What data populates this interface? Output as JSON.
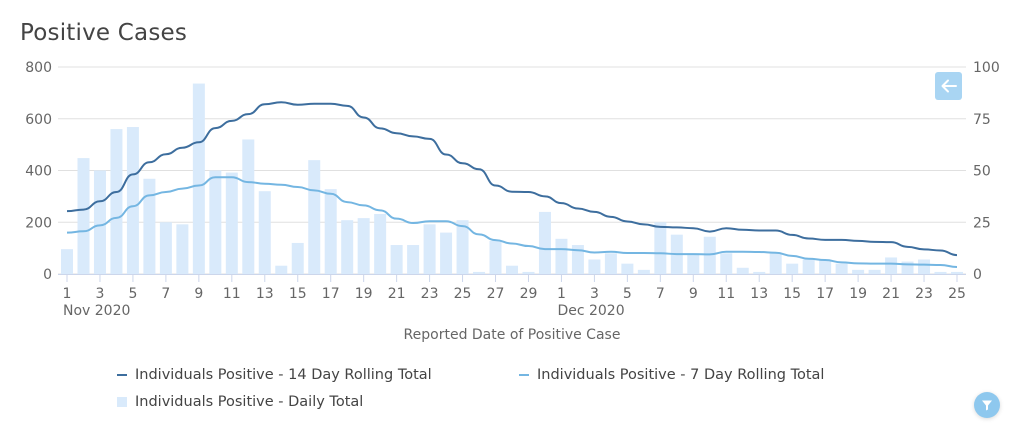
{
  "title": "Positive Cases",
  "controls": {
    "back_icon": "arrow-left-icon",
    "filter_icon": "filter-funnel-icon"
  },
  "colors": {
    "line_14day": "#3d6e9e",
    "line_7day": "#74b6e2",
    "bars": "#d9eafb",
    "grid": "#e0e0e0",
    "button": "#a9d5f3"
  },
  "chart_data": {
    "type": "bar+line",
    "title": "Positive Cases",
    "xlabel": "Reported Date of Positive Case",
    "ylabel_left": "",
    "ylabel_right": "",
    "left_axis": {
      "range": [
        0,
        800
      ],
      "ticks": [
        "0",
        "200",
        "400",
        "600",
        "800"
      ],
      "series": [
        "Individuals Positive - 14 Day Rolling Total",
        "Individuals Positive - 7 Day Rolling Total"
      ]
    },
    "right_axis": {
      "range": [
        0,
        100
      ],
      "ticks": [
        "0",
        "25",
        "50",
        "75",
        "100"
      ],
      "series": [
        "Individuals Positive - Daily Total"
      ]
    },
    "grid": true,
    "legend_position": "bottom",
    "x_tick_labels": [
      "1",
      "3",
      "5",
      "7",
      "9",
      "11",
      "13",
      "15",
      "17",
      "19",
      "21",
      "23",
      "25",
      "27",
      "29",
      "1",
      "3",
      "5",
      "7",
      "9",
      "11",
      "13",
      "15",
      "17",
      "19",
      "21",
      "23",
      "25"
    ],
    "x_tick_day_index": [
      1,
      3,
      5,
      7,
      9,
      11,
      13,
      15,
      17,
      19,
      21,
      23,
      25,
      27,
      29,
      31,
      33,
      35,
      37,
      39,
      41,
      43,
      45,
      47,
      49,
      51,
      53,
      55
    ],
    "month_labels": [
      {
        "label": "Nov 2020",
        "day_index": 1
      },
      {
        "label": "Dec 2020",
        "day_index": 31
      }
    ],
    "x_start": "2020-11-01",
    "x_end": "2020-12-25",
    "series": [
      {
        "name": "Individuals Positive - 14 Day Rolling Total",
        "type": "line",
        "axis": "left",
        "values": [
          243,
          249,
          281,
          317,
          385,
          432,
          463,
          488,
          509,
          564,
          592,
          618,
          656,
          664,
          654,
          658,
          658,
          650,
          605,
          563,
          544,
          532,
          522,
          462,
          428,
          405,
          342,
          318,
          317,
          300,
          274,
          253,
          240,
          221,
          203,
          192,
          182,
          180,
          177,
          164,
          177,
          171,
          168,
          168,
          151,
          137,
          132,
          132,
          128,
          124,
          123,
          105,
          95,
          91,
          73
        ]
      },
      {
        "name": "Individuals Positive - 7 Day Rolling Total",
        "type": "line",
        "axis": "left",
        "values": [
          160,
          165,
          188,
          217,
          262,
          304,
          317,
          330,
          342,
          374,
          374,
          355,
          349,
          345,
          336,
          323,
          310,
          278,
          265,
          246,
          214,
          197,
          204,
          204,
          185,
          153,
          131,
          118,
          108,
          96,
          96,
          92,
          83,
          86,
          81,
          81,
          80,
          77,
          77,
          76,
          86,
          86,
          85,
          82,
          70,
          59,
          54,
          45,
          41,
          40,
          40,
          37,
          36,
          35,
          27
        ]
      },
      {
        "name": "Individuals Positive - Daily Total",
        "type": "bar",
        "axis": "right",
        "values": [
          12,
          56,
          50,
          70,
          71,
          46,
          25,
          24,
          92,
          50,
          49,
          65,
          40,
          4,
          15,
          55,
          41,
          26,
          27,
          29,
          14,
          14,
          24,
          20,
          26,
          1,
          16,
          4,
          1,
          30,
          17,
          14,
          7,
          10,
          5,
          2,
          25,
          19,
          10,
          18,
          10,
          3,
          1,
          10,
          5,
          7,
          7,
          5,
          2,
          2,
          8,
          6,
          7,
          1,
          1
        ]
      }
    ]
  }
}
